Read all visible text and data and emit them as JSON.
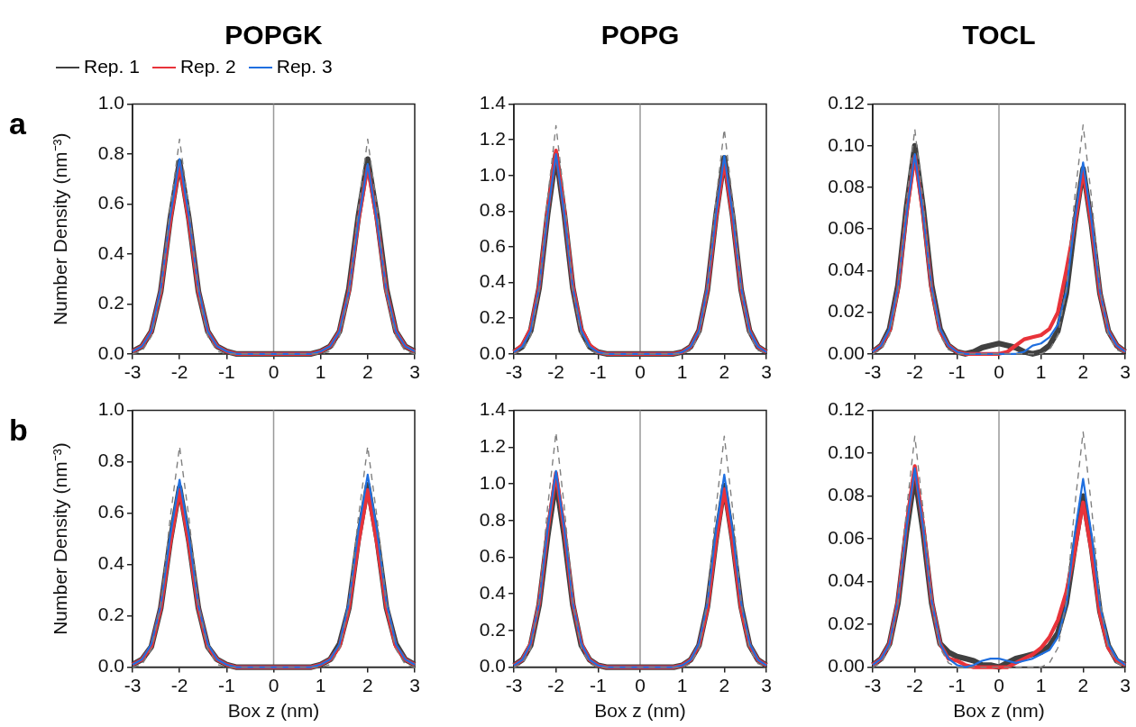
{
  "chart_data": [
    {
      "type": "line",
      "title": "POPGK",
      "ylabel": "Number Density (nm⁻³)",
      "annotations": [
        "a"
      ],
      "legend": "top left",
      "xlim": [
        -3,
        3
      ],
      "xticks": [
        -3,
        -2,
        -1,
        0,
        1,
        2,
        3
      ],
      "ylim": [
        0,
        1
      ],
      "yticks": [
        {
          "value": 0,
          "label": "0.0"
        },
        {
          "value": 0.2,
          "label": "0.2"
        },
        {
          "value": 0.4,
          "label": "0.4"
        },
        {
          "value": 0.6,
          "label": "0.6"
        },
        {
          "value": 0.8,
          "label": "0.8"
        },
        {
          "value": 1,
          "label": "1.0"
        }
      ],
      "ref_lines": [
        {
          "axis": "x",
          "value": 0,
          "color": "#999999"
        }
      ],
      "x": [
        -3,
        -2.8,
        -2.6,
        -2.4,
        -2.2,
        -2,
        -1.8,
        -1.6,
        -1.4,
        -1.2,
        -1,
        -0.8,
        -0.6,
        -0.4,
        -0.2,
        0,
        0.2,
        0.4,
        0.6,
        0.8,
        1,
        1.2,
        1.4,
        1.6,
        1.8,
        2,
        2.2,
        2.4,
        2.6,
        2.8,
        3
      ],
      "series": [
        {
          "color": "#808080",
          "line_style": "dashed",
          "values": [
            0,
            0.01,
            0.07,
            0.24,
            0.58,
            0.86,
            0.58,
            0.24,
            0.07,
            0.01,
            0,
            0,
            0,
            0,
            0,
            0,
            0,
            0,
            0,
            0,
            0,
            0.01,
            0.07,
            0.24,
            0.58,
            0.86,
            0.58,
            0.24,
            0.07,
            0.01,
            0
          ]
        },
        {
          "name": "Rep. 1",
          "color": "#404040",
          "values": [
            0.01,
            0.03,
            0.09,
            0.25,
            0.54,
            0.77,
            0.54,
            0.25,
            0.09,
            0.03,
            0.01,
            0,
            0,
            0,
            0,
            0,
            0,
            0,
            0,
            0,
            0.01,
            0.03,
            0.09,
            0.26,
            0.55,
            0.78,
            0.55,
            0.26,
            0.09,
            0.03,
            0.01
          ]
        },
        {
          "name": "Rep. 2",
          "color": "#e8333a",
          "values": [
            0.01,
            0.03,
            0.09,
            0.25,
            0.53,
            0.76,
            0.53,
            0.25,
            0.09,
            0.03,
            0.01,
            0,
            0,
            0,
            0,
            0,
            0,
            0,
            0,
            0,
            0.01,
            0.03,
            0.09,
            0.25,
            0.53,
            0.75,
            0.53,
            0.25,
            0.09,
            0.03,
            0.01
          ]
        },
        {
          "name": "Rep. 3",
          "color": "#1f6fe0",
          "values": [
            0.01,
            0.03,
            0.09,
            0.26,
            0.55,
            0.78,
            0.55,
            0.26,
            0.09,
            0.03,
            0.01,
            0,
            0,
            0,
            0,
            0,
            0,
            0,
            0,
            0,
            0.01,
            0.03,
            0.09,
            0.25,
            0.53,
            0.76,
            0.53,
            0.25,
            0.09,
            0.03,
            0.01
          ]
        }
      ]
    },
    {
      "type": "line",
      "title": "POPG",
      "xlim": [
        -3,
        3
      ],
      "xticks": [
        -3,
        -2,
        -1,
        0,
        1,
        2,
        3
      ],
      "ylim": [
        0,
        1.4
      ],
      "yticks": [
        {
          "value": 0,
          "label": "0.0"
        },
        {
          "value": 0.2,
          "label": "0.2"
        },
        {
          "value": 0.4,
          "label": "0.4"
        },
        {
          "value": 0.6,
          "label": "0.6"
        },
        {
          "value": 0.8,
          "label": "0.8"
        },
        {
          "value": 1,
          "label": "1.0"
        },
        {
          "value": 1.2,
          "label": "1.2"
        },
        {
          "value": 1.4,
          "label": "1.4"
        }
      ],
      "ref_lines": [
        {
          "axis": "x",
          "value": 0,
          "color": "#999999"
        }
      ],
      "x": [
        -3,
        -2.8,
        -2.6,
        -2.4,
        -2.2,
        -2,
        -1.8,
        -1.6,
        -1.4,
        -1.2,
        -1,
        -0.8,
        -0.6,
        -0.4,
        -0.2,
        0,
        0.2,
        0.4,
        0.6,
        0.8,
        1,
        1.2,
        1.4,
        1.6,
        1.8,
        2,
        2.2,
        2.4,
        2.6,
        2.8,
        3
      ],
      "series": [
        {
          "color": "#808080",
          "line_style": "dashed",
          "values": [
            0,
            0.02,
            0.1,
            0.36,
            0.87,
            1.28,
            0.87,
            0.36,
            0.1,
            0.02,
            0,
            0,
            0,
            0,
            0,
            0,
            0,
            0,
            0,
            0,
            0,
            0.02,
            0.1,
            0.35,
            0.86,
            1.26,
            0.86,
            0.35,
            0.1,
            0.02,
            0
          ]
        },
        {
          "color": "#404040",
          "values": [
            0.01,
            0.04,
            0.13,
            0.37,
            0.78,
            1.12,
            0.78,
            0.37,
            0.13,
            0.04,
            0.01,
            0,
            0,
            0,
            0,
            0,
            0,
            0,
            0,
            0,
            0.01,
            0.04,
            0.13,
            0.36,
            0.77,
            1.1,
            0.77,
            0.36,
            0.13,
            0.04,
            0.01
          ]
        },
        {
          "color": "#e8333a",
          "values": [
            0.01,
            0.05,
            0.14,
            0.38,
            0.8,
            1.14,
            0.8,
            0.38,
            0.14,
            0.05,
            0.01,
            0,
            0,
            0,
            0,
            0,
            0,
            0,
            0,
            0,
            0.01,
            0.04,
            0.13,
            0.36,
            0.76,
            1.08,
            0.76,
            0.36,
            0.13,
            0.04,
            0.01
          ]
        },
        {
          "color": "#1f6fe0",
          "values": [
            0.01,
            0.04,
            0.13,
            0.37,
            0.78,
            1.12,
            0.78,
            0.37,
            0.13,
            0.04,
            0.01,
            0,
            0,
            0,
            0,
            0,
            0,
            0,
            0,
            0,
            0.01,
            0.04,
            0.13,
            0.37,
            0.78,
            1.11,
            0.78,
            0.37,
            0.13,
            0.04,
            0.01
          ]
        }
      ]
    },
    {
      "type": "line",
      "title": "TOCL",
      "xlim": [
        -3,
        3
      ],
      "xticks": [
        -3,
        -2,
        -1,
        0,
        1,
        2,
        3
      ],
      "ylim": [
        0,
        0.12
      ],
      "yticks": [
        {
          "value": 0,
          "label": "0.00"
        },
        {
          "value": 0.02,
          "label": "0.02"
        },
        {
          "value": 0.04,
          "label": "0.04"
        },
        {
          "value": 0.06,
          "label": "0.06"
        },
        {
          "value": 0.08,
          "label": "0.08"
        },
        {
          "value": 0.1,
          "label": "0.10"
        },
        {
          "value": 0.12,
          "label": "0.12"
        }
      ],
      "ref_lines": [
        {
          "axis": "x",
          "value": 0,
          "color": "#999999"
        }
      ],
      "x": [
        -3,
        -2.8,
        -2.6,
        -2.4,
        -2.2,
        -2,
        -1.8,
        -1.6,
        -1.4,
        -1.2,
        -1,
        -0.8,
        -0.6,
        -0.4,
        -0.2,
        0,
        0.2,
        0.4,
        0.6,
        0.8,
        1,
        1.2,
        1.4,
        1.6,
        1.8,
        2,
        2.2,
        2.4,
        2.6,
        2.8,
        3
      ],
      "series": [
        {
          "color": "#808080",
          "line_style": "dashed",
          "values": [
            0,
            0.002,
            0.009,
            0.03,
            0.073,
            0.108,
            0.073,
            0.03,
            0.009,
            0.002,
            0,
            0,
            0,
            0,
            0,
            0,
            0,
            0,
            0,
            0,
            0,
            0.002,
            0.009,
            0.031,
            0.075,
            0.11,
            0.075,
            0.031,
            0.009,
            0.002,
            0
          ]
        },
        {
          "color": "#404040",
          "values": [
            0.001,
            0.004,
            0.012,
            0.033,
            0.07,
            0.1,
            0.07,
            0.033,
            0.012,
            0.004,
            0.001,
            0,
            0.001,
            0.003,
            0.004,
            0.005,
            0.004,
            0.003,
            0.001,
            0,
            0.001,
            0.004,
            0.011,
            0.029,
            0.062,
            0.089,
            0.062,
            0.029,
            0.011,
            0.004,
            0.001
          ]
        },
        {
          "color": "#e8333a",
          "values": [
            0.001,
            0.004,
            0.011,
            0.031,
            0.067,
            0.095,
            0.067,
            0.031,
            0.011,
            0.004,
            0.001,
            0,
            0,
            0,
            0,
            0,
            0.001,
            0.004,
            0.007,
            0.008,
            0.009,
            0.012,
            0.02,
            0.04,
            0.062,
            0.088,
            0.062,
            0.029,
            0.011,
            0.004,
            0.001
          ]
        },
        {
          "color": "#1f6fe0",
          "values": [
            0.001,
            0.004,
            0.012,
            0.032,
            0.067,
            0.096,
            0.067,
            0.032,
            0.012,
            0.004,
            0.001,
            0,
            0,
            0,
            0,
            0,
            0,
            0,
            0.001,
            0.004,
            0.005,
            0.008,
            0.014,
            0.03,
            0.064,
            0.092,
            0.064,
            0.03,
            0.011,
            0.004,
            0.001
          ]
        }
      ]
    },
    {
      "type": "line",
      "xlabel": "Box z (nm)",
      "ylabel": "Number Density (nm⁻³)",
      "annotations": [
        "b"
      ],
      "xlim": [
        -3,
        3
      ],
      "xticks": [
        -3,
        -2,
        -1,
        0,
        1,
        2,
        3
      ],
      "ylim": [
        0,
        1
      ],
      "yticks": [
        {
          "value": 0,
          "label": "0.0"
        },
        {
          "value": 0.2,
          "label": "0.2"
        },
        {
          "value": 0.4,
          "label": "0.4"
        },
        {
          "value": 0.6,
          "label": "0.6"
        },
        {
          "value": 0.8,
          "label": "0.8"
        },
        {
          "value": 1,
          "label": "1.0"
        }
      ],
      "ref_lines": [
        {
          "axis": "x",
          "value": 0,
          "color": "#999999"
        }
      ],
      "x": [
        -3,
        -2.8,
        -2.6,
        -2.4,
        -2.2,
        -2,
        -1.8,
        -1.6,
        -1.4,
        -1.2,
        -1,
        -0.8,
        -0.6,
        -0.4,
        -0.2,
        0,
        0.2,
        0.4,
        0.6,
        0.8,
        1,
        1.2,
        1.4,
        1.6,
        1.8,
        2,
        2.2,
        2.4,
        2.6,
        2.8,
        3
      ],
      "series": [
        {
          "color": "#808080",
          "line_style": "dashed",
          "values": [
            0,
            0.01,
            0.07,
            0.24,
            0.58,
            0.86,
            0.58,
            0.24,
            0.07,
            0.01,
            0,
            0,
            0,
            0,
            0,
            0,
            0,
            0,
            0,
            0,
            0,
            0.01,
            0.07,
            0.24,
            0.58,
            0.86,
            0.58,
            0.24,
            0.07,
            0.01,
            0
          ]
        },
        {
          "color": "#404040",
          "values": [
            0.01,
            0.03,
            0.08,
            0.23,
            0.49,
            0.7,
            0.49,
            0.23,
            0.08,
            0.03,
            0.01,
            0,
            0,
            0,
            0,
            0,
            0,
            0,
            0,
            0,
            0.01,
            0.03,
            0.09,
            0.23,
            0.5,
            0.71,
            0.5,
            0.23,
            0.09,
            0.03,
            0.01
          ]
        },
        {
          "color": "#e8333a",
          "values": [
            0.01,
            0.03,
            0.08,
            0.23,
            0.48,
            0.69,
            0.48,
            0.23,
            0.08,
            0.03,
            0.01,
            0,
            0,
            0,
            0,
            0,
            0,
            0,
            0,
            0,
            0.01,
            0.03,
            0.08,
            0.23,
            0.48,
            0.69,
            0.48,
            0.23,
            0.08,
            0.03,
            0.01
          ]
        },
        {
          "color": "#1f6fe0",
          "values": [
            0.01,
            0.03,
            0.09,
            0.24,
            0.51,
            0.73,
            0.51,
            0.24,
            0.09,
            0.03,
            0.01,
            0,
            0,
            0,
            0,
            0,
            0,
            0,
            0,
            0,
            0.01,
            0.03,
            0.09,
            0.25,
            0.53,
            0.75,
            0.53,
            0.25,
            0.09,
            0.03,
            0.01
          ]
        }
      ]
    },
    {
      "type": "line",
      "xlabel": "Box z (nm)",
      "xlim": [
        -3,
        3
      ],
      "xticks": [
        -3,
        -2,
        -1,
        0,
        1,
        2,
        3
      ],
      "ylim": [
        0,
        1.4
      ],
      "yticks": [
        {
          "value": 0,
          "label": "0.0"
        },
        {
          "value": 0.2,
          "label": "0.2"
        },
        {
          "value": 0.4,
          "label": "0.4"
        },
        {
          "value": 0.6,
          "label": "0.6"
        },
        {
          "value": 0.8,
          "label": "0.8"
        },
        {
          "value": 1,
          "label": "1.0"
        },
        {
          "value": 1.2,
          "label": "1.2"
        },
        {
          "value": 1.4,
          "label": "1.4"
        }
      ],
      "ref_lines": [
        {
          "axis": "x",
          "value": 0,
          "color": "#999999"
        }
      ],
      "x": [
        -3,
        -2.8,
        -2.6,
        -2.4,
        -2.2,
        -2,
        -1.8,
        -1.6,
        -1.4,
        -1.2,
        -1,
        -0.8,
        -0.6,
        -0.4,
        -0.2,
        0,
        0.2,
        0.4,
        0.6,
        0.8,
        1,
        1.2,
        1.4,
        1.6,
        1.8,
        2,
        2.2,
        2.4,
        2.6,
        2.8,
        3
      ],
      "series": [
        {
          "color": "#808080",
          "line_style": "dashed",
          "values": [
            0,
            0.02,
            0.1,
            0.36,
            0.87,
            1.28,
            0.87,
            0.36,
            0.1,
            0.02,
            0,
            0,
            0,
            0,
            0,
            0,
            0,
            0,
            0,
            0,
            0,
            0.02,
            0.1,
            0.35,
            0.86,
            1.26,
            0.86,
            0.35,
            0.1,
            0.02,
            0
          ]
        },
        {
          "color": "#404040",
          "values": [
            0.01,
            0.04,
            0.12,
            0.34,
            0.71,
            1.02,
            0.71,
            0.34,
            0.12,
            0.04,
            0.01,
            0,
            0,
            0,
            0,
            0,
            0,
            0,
            0,
            0,
            0.01,
            0.04,
            0.12,
            0.33,
            0.69,
            0.99,
            0.69,
            0.33,
            0.12,
            0.04,
            0.01
          ]
        },
        {
          "color": "#e8333a",
          "values": [
            0.01,
            0.04,
            0.13,
            0.35,
            0.74,
            1.06,
            0.74,
            0.35,
            0.13,
            0.04,
            0.01,
            0,
            0,
            0,
            0,
            0,
            0,
            0,
            0,
            0,
            0.01,
            0.04,
            0.12,
            0.32,
            0.68,
            0.97,
            0.68,
            0.32,
            0.12,
            0.04,
            0.01
          ]
        },
        {
          "color": "#1f6fe0",
          "values": [
            0.01,
            0.04,
            0.13,
            0.35,
            0.75,
            1.07,
            0.75,
            0.35,
            0.13,
            0.04,
            0.01,
            0,
            0,
            0,
            0,
            0,
            0,
            0,
            0,
            0,
            0.01,
            0.04,
            0.13,
            0.35,
            0.74,
            1.05,
            0.74,
            0.35,
            0.13,
            0.04,
            0.01
          ]
        }
      ]
    },
    {
      "type": "line",
      "xlabel": "Box z (nm)",
      "xlim": [
        -3,
        3
      ],
      "xticks": [
        -3,
        -2,
        -1,
        0,
        1,
        2,
        3
      ],
      "ylim": [
        0,
        0.12
      ],
      "yticks": [
        {
          "value": 0,
          "label": "0.00"
        },
        {
          "value": 0.02,
          "label": "0.02"
        },
        {
          "value": 0.04,
          "label": "0.04"
        },
        {
          "value": 0.06,
          "label": "0.06"
        },
        {
          "value": 0.08,
          "label": "0.08"
        },
        {
          "value": 0.1,
          "label": "0.10"
        },
        {
          "value": 0.12,
          "label": "0.12"
        }
      ],
      "ref_lines": [
        {
          "axis": "x",
          "value": 0,
          "color": "#999999"
        }
      ],
      "x": [
        -3,
        -2.8,
        -2.6,
        -2.4,
        -2.2,
        -2,
        -1.8,
        -1.6,
        -1.4,
        -1.2,
        -1,
        -0.8,
        -0.6,
        -0.4,
        -0.2,
        0,
        0.2,
        0.4,
        0.6,
        0.8,
        1,
        1.2,
        1.4,
        1.6,
        1.8,
        2,
        2.2,
        2.4,
        2.6,
        2.8,
        3
      ],
      "series": [
        {
          "color": "#808080",
          "line_style": "dashed",
          "values": [
            0,
            0.002,
            0.009,
            0.03,
            0.073,
            0.108,
            0.073,
            0.03,
            0.009,
            0.002,
            0,
            0,
            0,
            0,
            0,
            0,
            0,
            0,
            0,
            0,
            0,
            0.002,
            0.009,
            0.031,
            0.075,
            0.11,
            0.075,
            0.031,
            0.009,
            0.002,
            0
          ]
        },
        {
          "color": "#404040",
          "values": [
            0.001,
            0.004,
            0.011,
            0.03,
            0.063,
            0.09,
            0.063,
            0.03,
            0.011,
            0.007,
            0.005,
            0.004,
            0.003,
            0.001,
            0.001,
            0,
            0.002,
            0.004,
            0.005,
            0.006,
            0.007,
            0.01,
            0.016,
            0.03,
            0.056,
            0.08,
            0.056,
            0.026,
            0.01,
            0.003,
            0.001
          ]
        },
        {
          "color": "#e8333a",
          "values": [
            0.001,
            0.004,
            0.011,
            0.031,
            0.066,
            0.094,
            0.066,
            0.031,
            0.011,
            0.004,
            0.003,
            0.001,
            0,
            0,
            0,
            0,
            0,
            0.002,
            0.004,
            0.006,
            0.009,
            0.014,
            0.022,
            0.035,
            0.054,
            0.077,
            0.054,
            0.025,
            0.009,
            0.003,
            0.001
          ]
        },
        {
          "color": "#1f6fe0",
          "values": [
            0.001,
            0.004,
            0.011,
            0.031,
            0.065,
            0.093,
            0.065,
            0.031,
            0.011,
            0.004,
            0.001,
            0,
            0.001,
            0.003,
            0.004,
            0.004,
            0.003,
            0.002,
            0.003,
            0.004,
            0.006,
            0.008,
            0.014,
            0.029,
            0.062,
            0.088,
            0.062,
            0.029,
            0.011,
            0.004,
            0.001
          ]
        }
      ]
    }
  ]
}
